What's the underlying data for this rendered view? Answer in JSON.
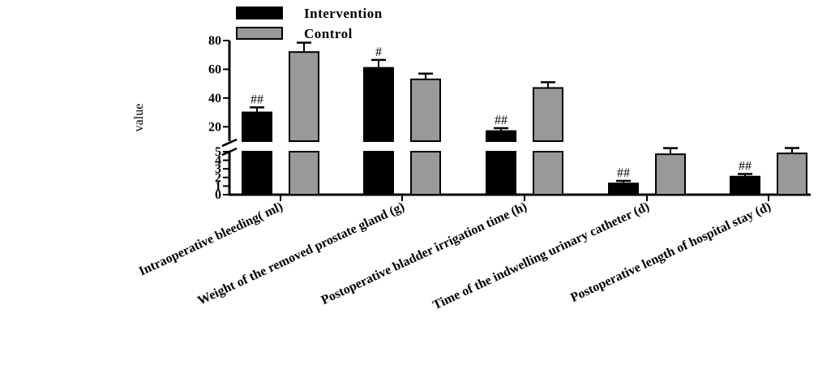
{
  "chart_data": {
    "type": "bar",
    "title": "",
    "xlabel": "",
    "ylabel": "value",
    "categories": [
      "Intraoperative bleeding( ml)",
      "Weight of the removed prostate gland (g)",
      "Postoperative bladder irrigation time (h)",
      "Time of the indwelling urinary catheter (d)",
      "Postoperative length of hospital stay (d)"
    ],
    "series": [
      {
        "name": "Intervention",
        "color": "#000000",
        "values": [
          30,
          61,
          17,
          1.3,
          2.1
        ],
        "errors": [
          3.5,
          5.5,
          2,
          0.3,
          0.3
        ]
      },
      {
        "name": "Control",
        "color": "#999999",
        "values": [
          72,
          53,
          47,
          4.7,
          4.8
        ],
        "errors": [
          6.5,
          4,
          4,
          0.4,
          0.4
        ]
      }
    ],
    "annotations": [
      "##",
      "#",
      "##",
      "##",
      "##"
    ],
    "y_axis": {
      "broken": true,
      "lower_segment": {
        "range": [
          0,
          5
        ],
        "ticks": [
          "0",
          "1",
          "2",
          "3",
          "4",
          "5"
        ]
      },
      "upper_segment": {
        "range": [
          10,
          80
        ],
        "ticks": [
          "20",
          "40",
          "60",
          "80"
        ]
      }
    },
    "legend_position": "top-left",
    "grid": false
  }
}
